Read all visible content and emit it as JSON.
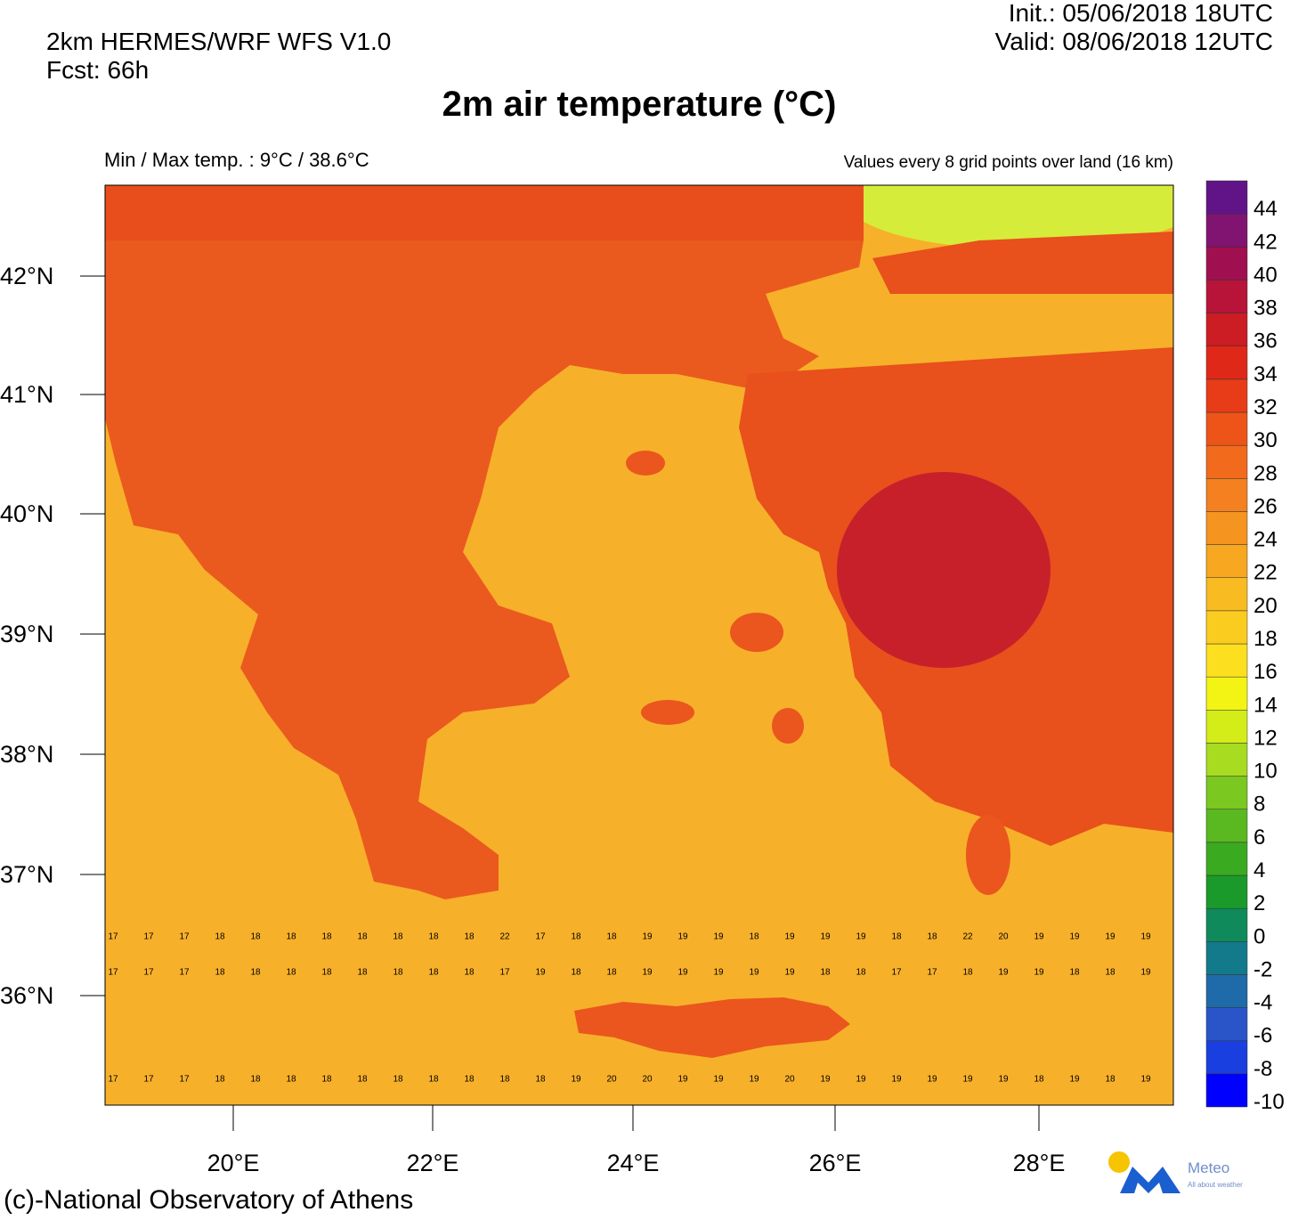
{
  "header": {
    "model": "2km HERMES/WRF WFS V1.0",
    "forecast": "Fcst: 66h",
    "init": "Init.:  05/06/2018 18UTC",
    "valid": "Valid: 08/06/2018 12UTC"
  },
  "title": "2m air temperature (°C)",
  "minmax": "Min / Max temp. : 9°C / 38.6°C",
  "note": "Values every 8 grid points over land (16 km)",
  "lat_labels": [
    "42°N",
    "41°N",
    "40°N",
    "39°N",
    "38°N",
    "37°N",
    "36°N"
  ],
  "lon_labels": [
    "20°E",
    "22°E",
    "24°E",
    "26°E",
    "28°E"
  ],
  "grid_values": [
    [
      17,
      17,
      17,
      18,
      18,
      18,
      18,
      18,
      18,
      18,
      18,
      22,
      17,
      18,
      18,
      19,
      19,
      19,
      18,
      19,
      19,
      19,
      18,
      18,
      22,
      20,
      19,
      19,
      19,
      19
    ],
    [
      17,
      17,
      17,
      18,
      18,
      18,
      18,
      18,
      18,
      18,
      18,
      17,
      19,
      18,
      18,
      19,
      19,
      19,
      19,
      19,
      18,
      18,
      17,
      17,
      18,
      19,
      19,
      18,
      18,
      19
    ],
    [
      17,
      17,
      17,
      18,
      18,
      18,
      18,
      18,
      18,
      18,
      18,
      18,
      18,
      19,
      20,
      20,
      19,
      19,
      19,
      20,
      19,
      19,
      19,
      19,
      19,
      19,
      18,
      19,
      18,
      19
    ]
  ],
  "colorbar": {
    "levels": [
      -10,
      -8,
      -6,
      -4,
      -2,
      0,
      2,
      4,
      6,
      8,
      10,
      12,
      14,
      16,
      18,
      20,
      22,
      24,
      26,
      28,
      30,
      32,
      34,
      36,
      38,
      40,
      42,
      44
    ],
    "colors": [
      "#0000ff",
      "#1a3fe0",
      "#2a55c8",
      "#1f6aa8",
      "#127a8a",
      "#0f8a5a",
      "#1a9a2a",
      "#3aaa20",
      "#5ab820",
      "#7ac820",
      "#a8dc20",
      "#d4ec18",
      "#f4f414",
      "#fce020",
      "#fbcc20",
      "#f9bb22",
      "#f7a820",
      "#f69420",
      "#f48020",
      "#f26a1c",
      "#ee5418",
      "#e83c18",
      "#e02818",
      "#cc1c24",
      "#b8143a",
      "#a01050",
      "#801470",
      "#601488"
    ]
  },
  "footer": "(c)-National Observatory of Athens",
  "logo": {
    "name": "Meteo",
    "tagline": "All about weather"
  }
}
